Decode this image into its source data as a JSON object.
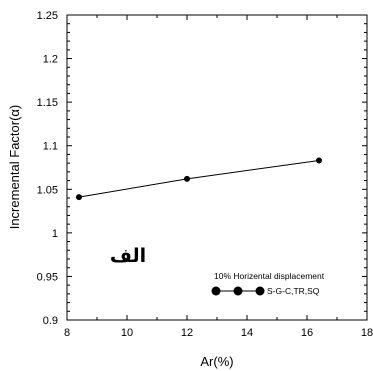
{
  "chart_data": {
    "type": "line",
    "title": "",
    "xlabel": "Ar(%)",
    "ylabel": "Incremental Factor(α)",
    "xlim": [
      8,
      18
    ],
    "ylim": [
      0.9,
      1.25
    ],
    "x_ticks": [
      8,
      10,
      12,
      14,
      16,
      18
    ],
    "y_ticks": [
      0.9,
      0.95,
      1,
      1.05,
      1.1,
      1.15,
      1.2,
      1.25
    ],
    "x_tick_labels": [
      "8",
      "10",
      "12",
      "14",
      "16",
      "18"
    ],
    "y_tick_labels": [
      "0.9",
      "0.95",
      "1",
      "1.05",
      "1.1",
      "1.15",
      "1.2",
      "1.25"
    ],
    "grid": false,
    "legend_position": "bottom-right",
    "legend_title": "10% Horizental displacement",
    "annotation": "الف",
    "series": [
      {
        "name": "S-G-C,TR,SQ",
        "marker": "circle",
        "color": "#000000",
        "x": [
          8.4,
          12.0,
          16.4
        ],
        "y": [
          1.041,
          1.062,
          1.083
        ]
      }
    ]
  }
}
